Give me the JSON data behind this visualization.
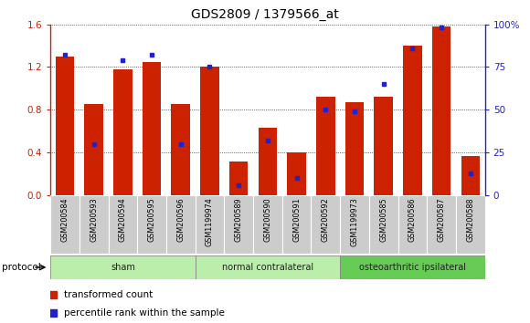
{
  "title": "GDS2809 / 1379566_at",
  "samples": [
    "GSM200584",
    "GSM200593",
    "GSM200594",
    "GSM200595",
    "GSM200596",
    "GSM1199974",
    "GSM200589",
    "GSM200590",
    "GSM200591",
    "GSM200592",
    "GSM1199973",
    "GSM200585",
    "GSM200586",
    "GSM200587",
    "GSM200588"
  ],
  "red_values": [
    1.3,
    0.85,
    1.18,
    1.25,
    0.85,
    1.2,
    0.32,
    0.63,
    0.4,
    0.92,
    0.87,
    0.92,
    1.4,
    1.58,
    0.37
  ],
  "blue_percentile": [
    82,
    30,
    79,
    82,
    30,
    75,
    6,
    32,
    10,
    50,
    49,
    65,
    86,
    98,
    13
  ],
  "groups": [
    {
      "label": "sham",
      "start": 0,
      "end": 4
    },
    {
      "label": "normal contralateral",
      "start": 5,
      "end": 9
    },
    {
      "label": "osteoarthritic ipsilateral",
      "start": 10,
      "end": 14
    }
  ],
  "ylim_left": [
    0,
    1.6
  ],
  "ylim_right": [
    0,
    100
  ],
  "yticks_left": [
    0,
    0.4,
    0.8,
    1.2,
    1.6
  ],
  "yticks_right": [
    0,
    25,
    50,
    75,
    100
  ],
  "bar_color": "#cc2200",
  "dot_color": "#2222cc",
  "plot_bg": "#ffffff",
  "left_axis_color": "#cc2200",
  "right_axis_color": "#2222cc",
  "legend_items": [
    "transformed count",
    "percentile rank within the sample"
  ],
  "protocol_label": "protocol",
  "group_color_light": "#bbeeaa",
  "group_color_dark": "#66cc55",
  "xtick_bg": "#cccccc"
}
